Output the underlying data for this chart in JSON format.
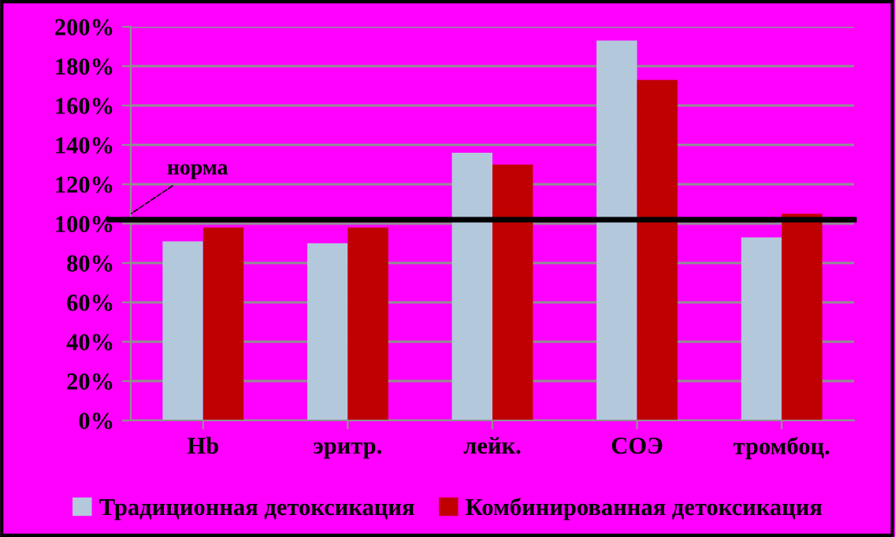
{
  "chart_data": {
    "type": "bar",
    "categories": [
      "Hb",
      "эритр.",
      "лейк.",
      "СОЭ",
      "тромбоц."
    ],
    "series": [
      {
        "name": "Традиционная детоксикация",
        "color": "#b4c8dc",
        "values": [
          91,
          90,
          136,
          193,
          93
        ]
      },
      {
        "name": "Комбинированная детоксикация",
        "color": "#c00000",
        "values": [
          98,
          98,
          130,
          173,
          105
        ]
      }
    ],
    "ylim": [
      0,
      200
    ],
    "yticks": [
      {
        "value": 0,
        "label": "0%"
      },
      {
        "value": 20,
        "label": "20%"
      },
      {
        "value": 40,
        "label": "40%"
      },
      {
        "value": 60,
        "label": "60%"
      },
      {
        "value": 80,
        "label": "80%"
      },
      {
        "value": 100,
        "label": "100%"
      },
      {
        "value": 120,
        "label": "120%"
      },
      {
        "value": 140,
        "label": "140%"
      },
      {
        "value": 160,
        "label": "160%"
      },
      {
        "value": 180,
        "label": "180%"
      },
      {
        "value": 200,
        "label": "200%"
      }
    ],
    "ref_lines": [
      {
        "axis": "y",
        "value": 102,
        "label": "норма",
        "color": "#000000"
      }
    ],
    "grid": "y",
    "legend": "bottom"
  }
}
